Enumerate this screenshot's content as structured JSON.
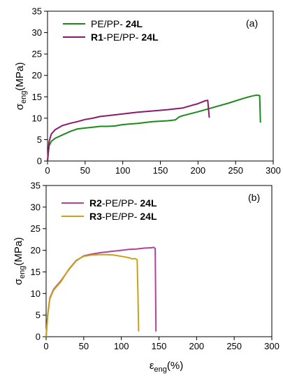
{
  "chart_data": [
    {
      "type": "line",
      "panel_label": "(a)",
      "xlim": [
        0,
        300
      ],
      "ylim": [
        0,
        35
      ],
      "x_ticks": [
        0,
        50,
        100,
        150,
        200,
        250,
        300
      ],
      "y_ticks": [
        0,
        5,
        10,
        15,
        20,
        25,
        30,
        35
      ],
      "ylabel_main": "σ",
      "ylabel_sub": "eng",
      "ylabel_unit": "(MPa)",
      "legend_position": "top-left",
      "series": [
        {
          "name_prefix": "",
          "name_mid": "PE/PP- ",
          "name_bold_suffix": "24L",
          "color": "#1a8a1a",
          "x": [
            0,
            2,
            5,
            10,
            20,
            30,
            40,
            50,
            60,
            70,
            80,
            90,
            100,
            120,
            140,
            160,
            170,
            175,
            180,
            200,
            220,
            240,
            260,
            270,
            278,
            282,
            283
          ],
          "y": [
            0,
            3.5,
            4.6,
            5.3,
            6.1,
            6.9,
            7.5,
            7.7,
            7.9,
            8.1,
            8.1,
            8.2,
            8.5,
            8.8,
            9.2,
            9.4,
            9.6,
            10.3,
            10.6,
            11.5,
            12.5,
            13.5,
            14.6,
            15.1,
            15.4,
            15.3,
            9.0
          ]
        },
        {
          "name_prefix": "R1",
          "name_mid": "-PE/PP- ",
          "name_bold_suffix": "24L",
          "color": "#8b1a6b",
          "x": [
            0,
            2,
            5,
            10,
            20,
            30,
            40,
            50,
            60,
            70,
            80,
            90,
            100,
            120,
            140,
            160,
            180,
            190,
            200,
            210,
            213,
            215
          ],
          "y": [
            0,
            4.5,
            6.3,
            7.3,
            8.3,
            8.8,
            9.2,
            9.7,
            10.0,
            10.4,
            10.6,
            10.8,
            11.0,
            11.4,
            11.7,
            12.0,
            12.4,
            12.9,
            13.4,
            14.1,
            14.2,
            10.1
          ]
        }
      ]
    },
    {
      "type": "line",
      "panel_label": "(b)",
      "xlim": [
        0,
        300
      ],
      "ylim": [
        0,
        35
      ],
      "x_ticks": [
        0,
        50,
        100,
        150,
        200,
        250,
        300
      ],
      "y_ticks": [
        0,
        5,
        10,
        15,
        20,
        25,
        30,
        35
      ],
      "ylabel_main": "σ",
      "ylabel_sub": "eng",
      "ylabel_unit": "(MPa)",
      "xlabel_main": "ε",
      "xlabel_sub": "eng",
      "xlabel_unit": "(%)",
      "legend_position": "top-left",
      "series": [
        {
          "name_prefix": "R2",
          "name_mid": "-PE/PP- ",
          "name_bold_suffix": "24L",
          "color": "#b0449a",
          "x": [
            0,
            2,
            5,
            10,
            15,
            20,
            30,
            40,
            50,
            60,
            70,
            80,
            90,
            100,
            110,
            120,
            130,
            140,
            143,
            145,
            146
          ],
          "y": [
            0,
            5.0,
            9.0,
            11.0,
            12.0,
            13.0,
            15.5,
            17.6,
            18.7,
            19.1,
            19.4,
            19.6,
            19.8,
            20.0,
            20.2,
            20.3,
            20.5,
            20.6,
            20.7,
            20.4,
            1.2
          ]
        },
        {
          "name_prefix": "R3",
          "name_mid": "-PE/PP- ",
          "name_bold_suffix": "24L",
          "color": "#c9a21a",
          "x": [
            0,
            2,
            5,
            10,
            15,
            20,
            30,
            40,
            50,
            60,
            70,
            80,
            90,
            100,
            110,
            115,
            118,
            121,
            122,
            123
          ],
          "y": [
            0,
            4.8,
            8.8,
            10.8,
            11.8,
            12.8,
            15.6,
            17.7,
            18.6,
            18.9,
            19.0,
            19.0,
            18.9,
            18.6,
            18.3,
            18.0,
            18.1,
            17.8,
            10.0,
            1.2
          ]
        }
      ]
    }
  ]
}
